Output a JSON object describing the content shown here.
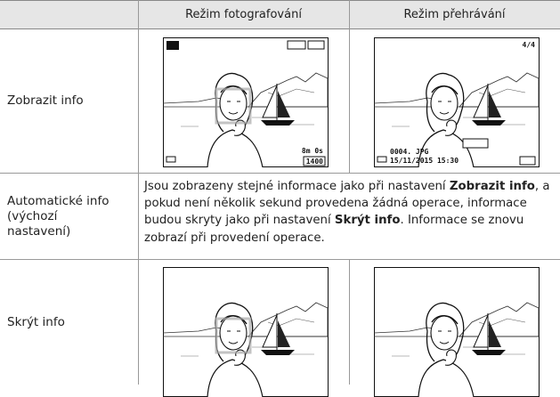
{
  "table": {
    "header": [
      "Režim fotografování",
      "Režim přehrávání"
    ],
    "rows": [
      {
        "label": "Zobrazit info",
        "photo_overlay": [
          "8m 0s",
          "1400"
        ],
        "playback_overlay": [
          "4/4",
          "0004. JPG",
          "15/11/2015 15:30"
        ]
      },
      {
        "label": "Automatické info (výchozí nastavení)",
        "description": [
          "Jsou zobrazeny stejné informace jako při nastavení ",
          "Zobrazit info",
          ", a pokud není několik sekund provedena žádná operace, informace budou skryty jako při nastavení ",
          "Skrýt info",
          ". Informace se znovu zobrazí při provedení operace."
        ]
      },
      {
        "label": "Skrýt info"
      }
    ]
  }
}
